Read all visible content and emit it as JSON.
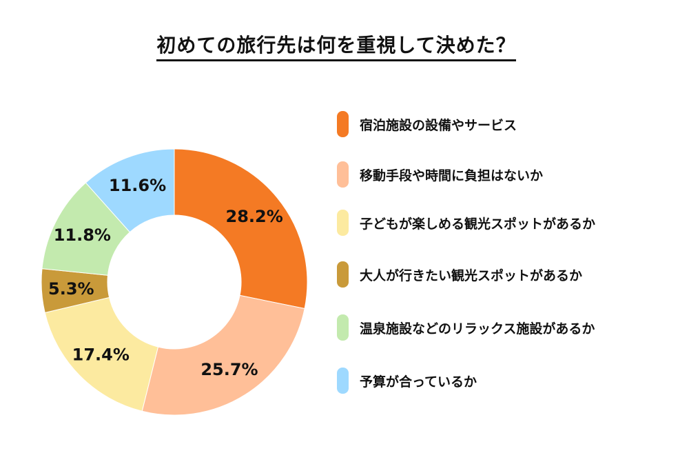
{
  "chart_data": {
    "type": "pie",
    "variant": "donut",
    "title": "初めての旅行先は何を重視して決めた？",
    "categories": [
      "宿泊施設の設備やサービス",
      "移動手段や時間に負担はないか",
      "子どもが楽しめる観光スポットがあるか",
      "大人が行きたい観光スポットがあるか",
      "温泉施設などのリラックス施設があるか",
      "予算が合っているか"
    ],
    "values": [
      28.2,
      25.7,
      17.4,
      5.3,
      11.8,
      11.6
    ],
    "labels": [
      "28.2%",
      "25.7%",
      "17.4%",
      "5.3%",
      "11.8%",
      "11.6%"
    ],
    "colors": [
      "#F47A24",
      "#FFBF98",
      "#FCEAA0",
      "#C99A3A",
      "#C3EAAE",
      "#9ED9FF"
    ],
    "legend_position": "right",
    "start": "top",
    "direction": "clockwise"
  }
}
